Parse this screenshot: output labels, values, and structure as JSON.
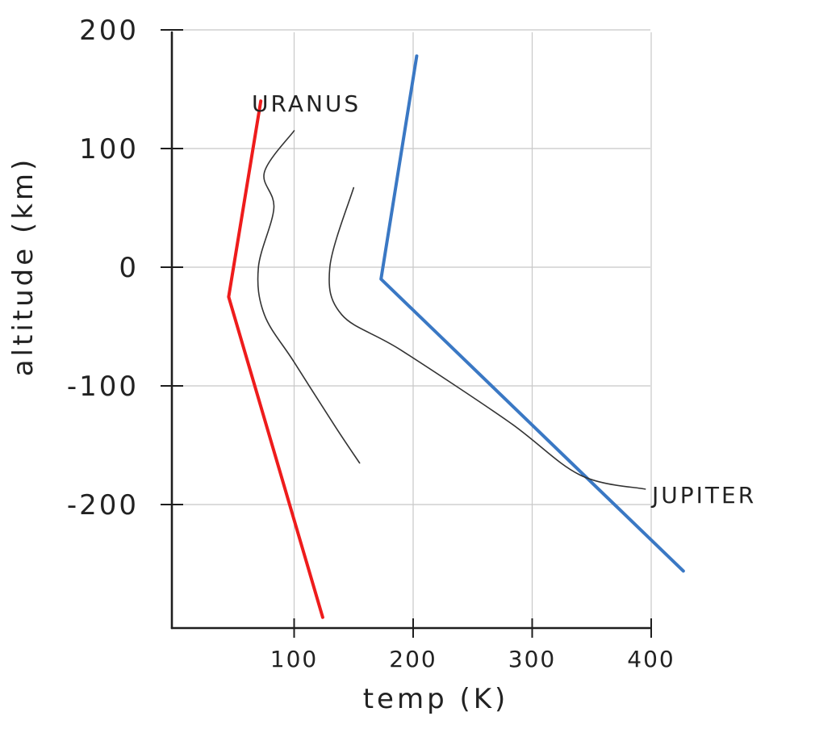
{
  "chart_data": {
    "type": "line",
    "xlabel": "temp (K)",
    "ylabel": "altitude (km)",
    "xlim": [
      0,
      400
    ],
    "ylim": [
      -300,
      200
    ],
    "x_ticks": [
      {
        "value": 100,
        "label": "100"
      },
      {
        "value": 200,
        "label": "200"
      },
      {
        "value": 300,
        "label": "300"
      },
      {
        "value": 400,
        "label": "400"
      }
    ],
    "y_ticks": [
      {
        "value": 200,
        "label": "200"
      },
      {
        "value": 100,
        "label": "100"
      },
      {
        "value": 0,
        "label": "0"
      },
      {
        "value": -100,
        "label": "-100"
      },
      {
        "value": -200,
        "label": "-200"
      }
    ],
    "grid": true,
    "series": [
      {
        "name": "URANUS",
        "color": "#ee1c1c",
        "style": "straight",
        "points": [
          [
            72,
            140
          ],
          [
            45,
            -25
          ],
          [
            124,
            -295
          ]
        ]
      },
      {
        "color": "#3a78c4",
        "style": "straight",
        "points": [
          [
            203,
            178
          ],
          [
            173,
            -10
          ],
          [
            427,
            -256
          ]
        ]
      },
      {
        "color": "#333333",
        "style": "sketch",
        "points": [
          [
            100,
            115
          ],
          [
            75,
            80
          ],
          [
            83,
            50
          ],
          [
            70,
            0
          ],
          [
            75,
            -40
          ],
          [
            100,
            -80
          ],
          [
            135,
            -135
          ],
          [
            155,
            -165
          ]
        ]
      },
      {
        "name": "JUPITER",
        "color": "#333333",
        "style": "sketch",
        "points": [
          [
            150,
            67
          ],
          [
            130,
            0
          ],
          [
            140,
            -40
          ],
          [
            190,
            -70
          ],
          [
            280,
            -130
          ],
          [
            340,
            -175
          ],
          [
            395,
            -187
          ]
        ]
      }
    ]
  }
}
